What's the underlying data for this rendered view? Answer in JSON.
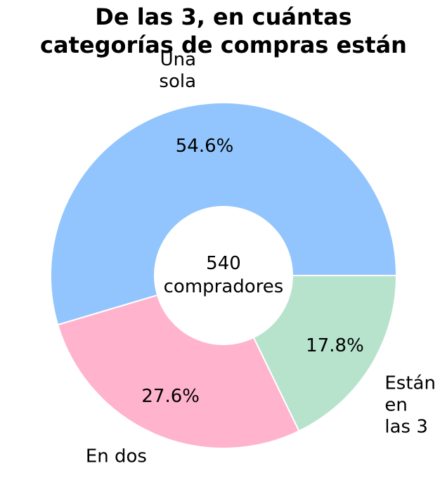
{
  "chart_data": {
    "type": "pie",
    "style": "donut",
    "title": "De las 3, en cuántas categorías de compras están",
    "title_lines": [
      "De las 3, en cuántas",
      "categorías de compras están"
    ],
    "center_label": [
      "540",
      "compradores"
    ],
    "slices": [
      {
        "label": "Una sola",
        "label_lines": [
          "Una",
          "sola"
        ],
        "value": 54.6,
        "pct_label": "54.6%",
        "color": "#92c5fd"
      },
      {
        "label": "En dos",
        "label_lines": [
          "En dos"
        ],
        "value": 27.6,
        "pct_label": "27.6%",
        "color": "#ffb3cc"
      },
      {
        "label": "Están en las 3",
        "label_lines": [
          "Están",
          "en",
          "las 3"
        ],
        "value": 17.8,
        "pct_label": "17.8%",
        "color": "#b7e3cd"
      }
    ],
    "start_angle_deg": 0,
    "direction": "counterclockwise"
  }
}
